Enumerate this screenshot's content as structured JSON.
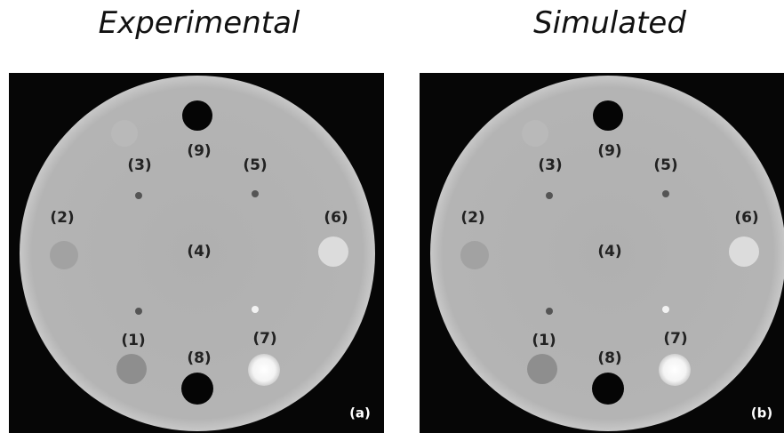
{
  "panels": [
    {
      "title": "Experimental",
      "tag": "(a)",
      "labels": [
        "(1)",
        "(2)",
        "(3)",
        "(4)",
        "(5)",
        "(6)",
        "(7)",
        "(8)",
        "(9)"
      ]
    },
    {
      "title": "Simulated",
      "tag": "(b)",
      "labels": [
        "(1)",
        "(2)",
        "(3)",
        "(4)",
        "(5)",
        "(6)",
        "(7)",
        "(8)",
        "(9)"
      ]
    }
  ]
}
